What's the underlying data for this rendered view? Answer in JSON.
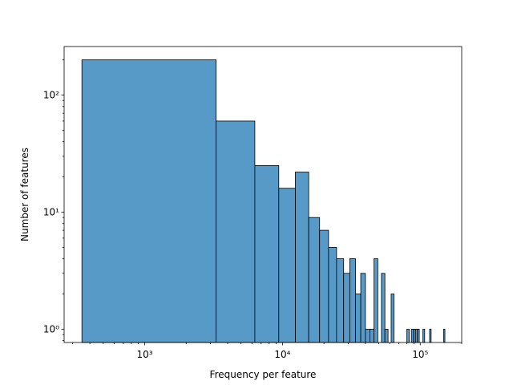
{
  "chart_data": {
    "type": "bar",
    "title": "",
    "xlabel": "Frequency per feature",
    "ylabel": "Number of features",
    "x_scale": "log",
    "y_scale": "log",
    "xlim": [
      260,
      200000
    ],
    "ylim": [
      0.77,
      260
    ],
    "x_ticks": [
      {
        "value": 1000,
        "label": "10³"
      },
      {
        "value": 10000,
        "label": "10⁴"
      },
      {
        "value": 100000,
        "label": "10⁵"
      }
    ],
    "y_ticks": [
      {
        "value": 1,
        "label": "10⁰"
      },
      {
        "value": 10,
        "label": "10¹"
      },
      {
        "value": 100,
        "label": "10²"
      }
    ],
    "bar_color": "#5799c7",
    "edge_color": "#000000",
    "grid": false,
    "bins": [
      {
        "x0": 350,
        "x1": 3300,
        "count": 200
      },
      {
        "x0": 3300,
        "x1": 6300,
        "count": 60
      },
      {
        "x0": 6300,
        "x1": 9400,
        "count": 25
      },
      {
        "x0": 9400,
        "x1": 12400,
        "count": 16
      },
      {
        "x0": 12400,
        "x1": 15500,
        "count": 22
      },
      {
        "x0": 15500,
        "x1": 18600,
        "count": 9
      },
      {
        "x0": 18600,
        "x1": 21600,
        "count": 7
      },
      {
        "x0": 21600,
        "x1": 24700,
        "count": 5
      },
      {
        "x0": 24700,
        "x1": 27800,
        "count": 4
      },
      {
        "x0": 27800,
        "x1": 30800,
        "count": 3
      },
      {
        "x0": 30800,
        "x1": 33900,
        "count": 4
      },
      {
        "x0": 33900,
        "x1": 37000,
        "count": 2
      },
      {
        "x0": 37000,
        "x1": 40000,
        "count": 3
      },
      {
        "x0": 40000,
        "x1": 43100,
        "count": 1
      },
      {
        "x0": 43100,
        "x1": 46200,
        "count": 1
      },
      {
        "x0": 46200,
        "x1": 49200,
        "count": 4
      },
      {
        "x0": 49200,
        "x1": 52300,
        "count": 0
      },
      {
        "x0": 52300,
        "x1": 55400,
        "count": 3
      },
      {
        "x0": 55400,
        "x1": 58400,
        "count": 1
      },
      {
        "x0": 58400,
        "x1": 61500,
        "count": 0
      },
      {
        "x0": 61500,
        "x1": 64500,
        "count": 2
      },
      {
        "x0": 80000,
        "x1": 83100,
        "count": 1
      },
      {
        "x0": 86200,
        "x1": 89300,
        "count": 1
      },
      {
        "x0": 89300,
        "x1": 92300,
        "count": 1
      },
      {
        "x0": 92300,
        "x1": 95400,
        "count": 1
      },
      {
        "x0": 95400,
        "x1": 98400,
        "count": 1
      },
      {
        "x0": 104600,
        "x1": 107700,
        "count": 1
      },
      {
        "x0": 117000,
        "x1": 120000,
        "count": 1
      },
      {
        "x0": 148000,
        "x1": 151000,
        "count": 1
      }
    ]
  }
}
